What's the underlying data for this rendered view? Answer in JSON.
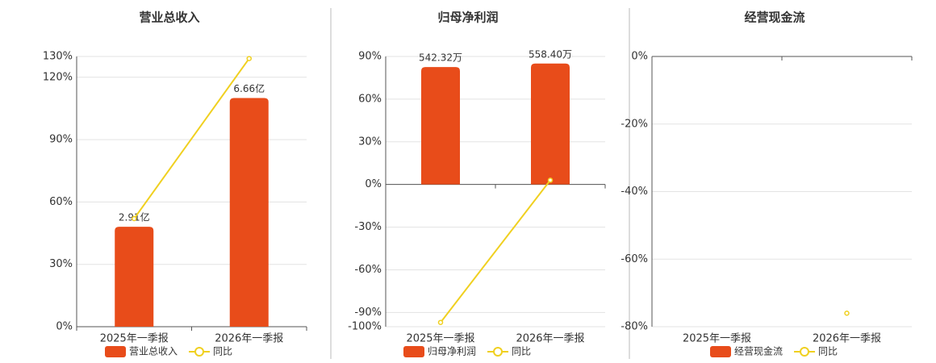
{
  "chart_data": [
    {
      "type": "bar",
      "title": "营业总收入",
      "categories": [
        "2025年一季报",
        "2026年一季报"
      ],
      "series": [
        {
          "name": "营业总收入",
          "color": "#e84c1a",
          "values": [
            2.91,
            6.66
          ],
          "value_labels": [
            "2.91亿",
            "6.66亿"
          ],
          "axis": "y2"
        },
        {
          "name": "同比",
          "color": "#f0d020",
          "type": "line",
          "values": [
            52,
            129
          ]
        }
      ],
      "ylim": [
        0,
        130
      ],
      "yticks": [
        {
          "value": 0,
          "label": "0%"
        },
        {
          "value": 30,
          "label": "30%"
        },
        {
          "value": 60,
          "label": "60%"
        },
        {
          "value": 90,
          "label": "90%"
        },
        {
          "value": 120,
          "label": "120%"
        },
        {
          "value": 130,
          "label": "130%"
        }
      ],
      "y2lim": [
        0,
        7.87
      ],
      "grid": true
    },
    {
      "type": "bar",
      "title": "归母净利润",
      "categories": [
        "2025年一季报",
        "2026年一季报"
      ],
      "series": [
        {
          "name": "归母净利润",
          "color": "#e84c1a",
          "values": [
            542.32,
            558.4
          ],
          "value_labels": [
            "542.32万",
            "558.40万"
          ],
          "axis": "y2"
        },
        {
          "name": "同比",
          "color": "#f0d020",
          "type": "line",
          "values": [
            -97,
            3
          ]
        }
      ],
      "ylim": [
        -100,
        90
      ],
      "yticks": [
        {
          "value": -100,
          "label": "-100%"
        },
        {
          "value": -90,
          "label": "-90%"
        },
        {
          "value": -60,
          "label": "-60%"
        },
        {
          "value": -30,
          "label": "-30%"
        },
        {
          "value": 0,
          "label": "0%"
        },
        {
          "value": 30,
          "label": "30%"
        },
        {
          "value": 60,
          "label": "60%"
        },
        {
          "value": 90,
          "label": "90%"
        }
      ],
      "y2lim": [
        -657,
        591
      ],
      "grid": true
    },
    {
      "type": "bar",
      "title": "经营现金流",
      "categories": [
        "2025年一季报",
        "2026年一季报"
      ],
      "series": [
        {
          "name": "经营现金流",
          "color": "#e84c1a",
          "values": [
            null,
            null
          ],
          "axis": "y2"
        },
        {
          "name": "同比",
          "color": "#f0d020",
          "type": "line",
          "values": [
            null,
            -76
          ]
        }
      ],
      "ylim": [
        -80,
        0
      ],
      "yticks": [
        {
          "value": -80,
          "label": "-80%"
        },
        {
          "value": -60,
          "label": "-60%"
        },
        {
          "value": -40,
          "label": "-40%"
        },
        {
          "value": -20,
          "label": "-20%"
        },
        {
          "value": 0,
          "label": "0%"
        }
      ],
      "grid": true
    }
  ]
}
